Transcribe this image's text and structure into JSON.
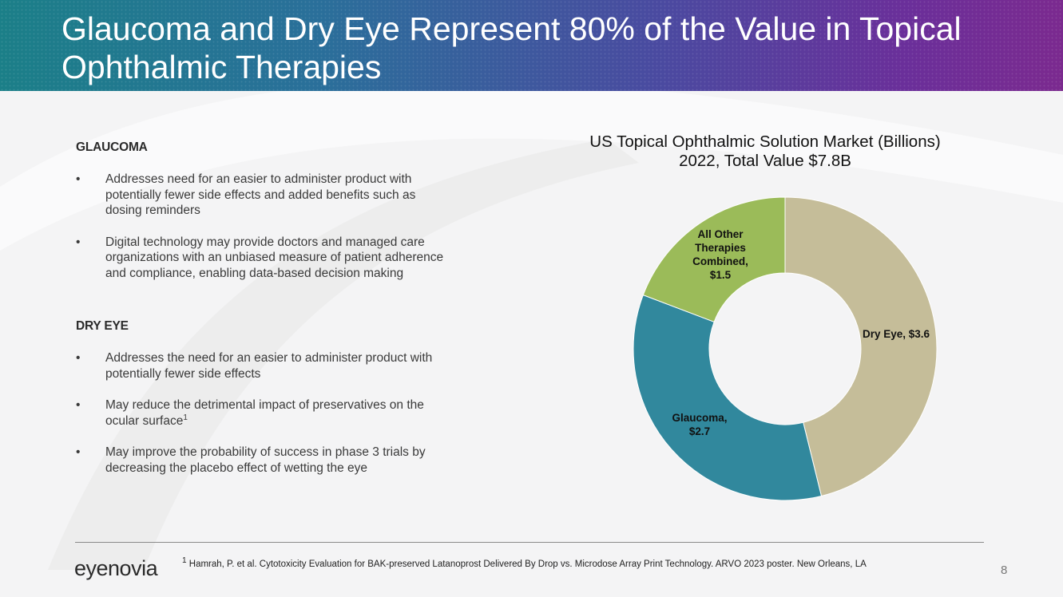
{
  "slide": {
    "title": "Glaucoma and Dry Eye Represent 80% of the Value in Topical Ophthalmic Therapies",
    "page_number": "8"
  },
  "sections": [
    {
      "heading": "GLAUCOMA",
      "bullets": [
        "Addresses need for an easier to administer product with potentially fewer side effects and added benefits such as dosing reminders",
        "Digital technology may provide doctors and managed care organizations with an unbiased measure of patient adherence and compliance, enabling data-based decision making"
      ]
    },
    {
      "heading": "DRY EYE",
      "bullets": [
        "Addresses the need for an easier to administer product with potentially fewer side effects",
        "May reduce the detrimental impact of preservatives on the ocular surface",
        "May improve the probability of success in phase 3 trials by decreasing the placebo effect of wetting the eye"
      ],
      "bullet_2_superscript": "1"
    }
  ],
  "chart_data": {
    "type": "pie",
    "variant": "donut",
    "title": "US Topical Ophthalmic Solution Market (Billions)",
    "subtitle": "2022, Total Value $7.8B",
    "categories": [
      "Dry Eye",
      "Glaucoma",
      "All Other Therapies Combined"
    ],
    "values": [
      3.6,
      2.7,
      1.5
    ],
    "labels": [
      "Dry Eye, $3.6",
      "Glaucoma,\n$2.7",
      "All Other\nTherapies\nCombined,\n$1.5"
    ],
    "colors": [
      "#c5bd99",
      "#31889d",
      "#9bbb59"
    ],
    "total": 7.8
  },
  "footer": {
    "logo": "eyenovia",
    "footnote_marker": "1",
    "footnote": "Hamrah, P. et al. Cytotoxicity Evaluation for BAK-preserved Latanoprost Delivered By Drop vs. Microdose Array Print Technology. ARVO 2023 poster. New Orleans, LA"
  }
}
